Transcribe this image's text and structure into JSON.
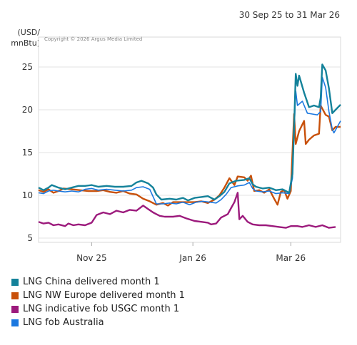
{
  "header": {
    "date_range": "30 Sep 25 to 31 Mar 26"
  },
  "chart_data": {
    "type": "line",
    "unit_line1": "(USD/",
    "unit_line2": "mnBtu)",
    "copyright": "Copyright © 2026 Argus Media Limited",
    "ylim": [
      4.5,
      28.5
    ],
    "yticks": [
      5,
      10,
      15,
      20,
      25
    ],
    "xlim": [
      "2025-09-30",
      "2026-03-31"
    ],
    "xticks": [
      {
        "label": "Nov 25",
        "date": "2025-11-01"
      },
      {
        "label": "Jan 26",
        "date": "2026-01-01"
      },
      {
        "label": "Mar 26",
        "date": "2026-03-01"
      }
    ],
    "grid": true,
    "legend_position": "bottom",
    "series": [
      {
        "name": "LNG China delivered month 1",
        "color": "#14829a",
        "points": [
          [
            "2025-09-30",
            10.9
          ],
          [
            "2025-10-03",
            10.6
          ],
          [
            "2025-10-06",
            10.9
          ],
          [
            "2025-10-08",
            11.2
          ],
          [
            "2025-10-12",
            10.9
          ],
          [
            "2025-10-16",
            10.7
          ],
          [
            "2025-10-20",
            10.9
          ],
          [
            "2025-10-24",
            11.1
          ],
          [
            "2025-10-28",
            11.1
          ],
          [
            "2025-11-01",
            11.2
          ],
          [
            "2025-11-05",
            11.0
          ],
          [
            "2025-11-10",
            11.1
          ],
          [
            "2025-11-15",
            11.0
          ],
          [
            "2025-11-20",
            11.0
          ],
          [
            "2025-11-25",
            11.1
          ],
          [
            "2025-11-28",
            11.5
          ],
          [
            "2025-12-01",
            11.7
          ],
          [
            "2025-12-05",
            11.4
          ],
          [
            "2025-12-08",
            10.9
          ],
          [
            "2025-12-10",
            10.1
          ],
          [
            "2025-12-13",
            9.5
          ],
          [
            "2025-12-18",
            9.6
          ],
          [
            "2025-12-22",
            9.5
          ],
          [
            "2025-12-26",
            9.7
          ],
          [
            "2025-12-29",
            9.4
          ],
          [
            "2026-01-02",
            9.7
          ],
          [
            "2026-01-06",
            9.8
          ],
          [
            "2026-01-10",
            9.9
          ],
          [
            "2026-01-14",
            9.5
          ],
          [
            "2026-01-17",
            9.9
          ],
          [
            "2026-01-20",
            10.4
          ],
          [
            "2026-01-23",
            11.4
          ],
          [
            "2026-01-27",
            11.7
          ],
          [
            "2026-02-01",
            11.8
          ],
          [
            "2026-02-04",
            12.0
          ],
          [
            "2026-02-06",
            11.3
          ],
          [
            "2026-02-08",
            11.0
          ],
          [
            "2026-02-12",
            10.8
          ],
          [
            "2026-02-16",
            10.9
          ],
          [
            "2026-02-20",
            10.6
          ],
          [
            "2026-02-24",
            10.7
          ],
          [
            "2026-02-26",
            10.5
          ],
          [
            "2026-02-28",
            10.3
          ],
          [
            "2026-03-02",
            12.5
          ],
          [
            "2026-03-03",
            18.0
          ],
          [
            "2026-03-04",
            24.2
          ],
          [
            "2026-03-05",
            22.8
          ],
          [
            "2026-03-06",
            24.0
          ],
          [
            "2026-03-09",
            22.0
          ],
          [
            "2026-03-12",
            20.3
          ],
          [
            "2026-03-15",
            20.5
          ],
          [
            "2026-03-18",
            20.3
          ],
          [
            "2026-03-19",
            21.4
          ],
          [
            "2026-03-20",
            25.3
          ],
          [
            "2026-03-22",
            24.6
          ],
          [
            "2026-03-24",
            22.5
          ],
          [
            "2026-03-26",
            19.6
          ],
          [
            "2026-03-28",
            20.0
          ],
          [
            "2026-03-31",
            20.6
          ]
        ]
      },
      {
        "name": "LNG NW Europe delivered month 1",
        "color": "#c8500a",
        "points": [
          [
            "2025-09-30",
            10.6
          ],
          [
            "2025-10-03",
            10.4
          ],
          [
            "2025-10-06",
            10.7
          ],
          [
            "2025-10-09",
            10.3
          ],
          [
            "2025-10-12",
            10.5
          ],
          [
            "2025-10-15",
            10.8
          ],
          [
            "2025-10-20",
            10.7
          ],
          [
            "2025-10-25",
            10.6
          ],
          [
            "2025-10-30",
            10.5
          ],
          [
            "2025-11-04",
            10.5
          ],
          [
            "2025-11-08",
            10.6
          ],
          [
            "2025-11-12",
            10.4
          ],
          [
            "2025-11-16",
            10.3
          ],
          [
            "2025-11-20",
            10.5
          ],
          [
            "2025-11-24",
            10.2
          ],
          [
            "2025-11-28",
            10.1
          ],
          [
            "2025-12-02",
            9.6
          ],
          [
            "2025-12-06",
            9.3
          ],
          [
            "2025-12-10",
            8.9
          ],
          [
            "2025-12-14",
            9.1
          ],
          [
            "2025-12-17",
            8.8
          ],
          [
            "2025-12-20",
            9.2
          ],
          [
            "2025-12-24",
            9.2
          ],
          [
            "2025-12-28",
            9.2
          ],
          [
            "2026-01-02",
            9.2
          ],
          [
            "2026-01-06",
            9.3
          ],
          [
            "2026-01-10",
            9.1
          ],
          [
            "2026-01-14",
            9.5
          ],
          [
            "2026-01-17",
            10.0
          ],
          [
            "2026-01-20",
            10.9
          ],
          [
            "2026-01-23",
            12.0
          ],
          [
            "2026-01-26",
            11.2
          ],
          [
            "2026-01-28",
            12.2
          ],
          [
            "2026-02-01",
            12.1
          ],
          [
            "2026-02-03",
            11.7
          ],
          [
            "2026-02-05",
            12.3
          ],
          [
            "2026-02-07",
            10.5
          ],
          [
            "2026-02-10",
            10.6
          ],
          [
            "2026-02-13",
            10.3
          ],
          [
            "2026-02-16",
            10.7
          ],
          [
            "2026-02-19",
            9.6
          ],
          [
            "2026-02-21",
            8.9
          ],
          [
            "2026-02-23",
            10.4
          ],
          [
            "2026-02-25",
            10.6
          ],
          [
            "2026-02-27",
            9.6
          ],
          [
            "2026-03-01",
            10.5
          ],
          [
            "2026-03-03",
            19.5
          ],
          [
            "2026-03-04",
            16.0
          ],
          [
            "2026-03-06",
            17.5
          ],
          [
            "2026-03-09",
            18.7
          ],
          [
            "2026-03-10",
            16.0
          ],
          [
            "2026-03-12",
            16.5
          ],
          [
            "2026-03-15",
            17.0
          ],
          [
            "2026-03-18",
            17.2
          ],
          [
            "2026-03-19",
            20.5
          ],
          [
            "2026-03-22",
            19.4
          ],
          [
            "2026-03-24",
            19.2
          ],
          [
            "2026-03-26",
            17.6
          ],
          [
            "2026-03-28",
            18.0
          ],
          [
            "2026-03-31",
            18.0
          ]
        ]
      },
      {
        "name": "LNG indicative fob USGC month 1",
        "color": "#9c1a7c",
        "points": [
          [
            "2025-09-30",
            6.9
          ],
          [
            "2025-10-03",
            6.7
          ],
          [
            "2025-10-06",
            6.8
          ],
          [
            "2025-10-09",
            6.5
          ],
          [
            "2025-10-12",
            6.6
          ],
          [
            "2025-10-16",
            6.4
          ],
          [
            "2025-10-18",
            6.7
          ],
          [
            "2025-10-21",
            6.5
          ],
          [
            "2025-10-24",
            6.6
          ],
          [
            "2025-10-28",
            6.5
          ],
          [
            "2025-11-01",
            6.8
          ],
          [
            "2025-11-04",
            7.7
          ],
          [
            "2025-11-08",
            8.0
          ],
          [
            "2025-11-12",
            7.8
          ],
          [
            "2025-11-16",
            8.2
          ],
          [
            "2025-11-20",
            8.0
          ],
          [
            "2025-11-24",
            8.3
          ],
          [
            "2025-11-28",
            8.2
          ],
          [
            "2025-12-02",
            8.8
          ],
          [
            "2025-12-05",
            8.4
          ],
          [
            "2025-12-08",
            8.0
          ],
          [
            "2025-12-10",
            7.8
          ],
          [
            "2025-12-12",
            7.6
          ],
          [
            "2025-12-15",
            7.5
          ],
          [
            "2025-12-20",
            7.5
          ],
          [
            "2025-12-24",
            7.6
          ],
          [
            "2025-12-28",
            7.3
          ],
          [
            "2026-01-02",
            7.0
          ],
          [
            "2026-01-06",
            6.9
          ],
          [
            "2026-01-10",
            6.8
          ],
          [
            "2026-01-12",
            6.6
          ],
          [
            "2026-01-15",
            6.7
          ],
          [
            "2026-01-18",
            7.4
          ],
          [
            "2026-01-22",
            7.8
          ],
          [
            "2026-01-24",
            8.5
          ],
          [
            "2026-01-26",
            9.2
          ],
          [
            "2026-01-28",
            10.3
          ],
          [
            "2026-01-29",
            7.2
          ],
          [
            "2026-01-31",
            7.6
          ],
          [
            "2026-02-03",
            6.9
          ],
          [
            "2026-02-06",
            6.6
          ],
          [
            "2026-02-10",
            6.5
          ],
          [
            "2026-02-14",
            6.5
          ],
          [
            "2026-02-18",
            6.4
          ],
          [
            "2026-02-22",
            6.3
          ],
          [
            "2026-02-26",
            6.2
          ],
          [
            "2026-03-01",
            6.4
          ],
          [
            "2026-03-05",
            6.4
          ],
          [
            "2026-03-08",
            6.3
          ],
          [
            "2026-03-12",
            6.5
          ],
          [
            "2026-03-16",
            6.3
          ],
          [
            "2026-03-20",
            6.5
          ],
          [
            "2026-03-24",
            6.2
          ],
          [
            "2026-03-28",
            6.3
          ]
        ]
      },
      {
        "name": "LNG fob Australia",
        "color": "#1b78e0",
        "points": [
          [
            "2025-09-30",
            10.3
          ],
          [
            "2025-10-03",
            10.2
          ],
          [
            "2025-10-06",
            10.5
          ],
          [
            "2025-10-09",
            10.6
          ],
          [
            "2025-10-12",
            10.5
          ],
          [
            "2025-10-16",
            10.4
          ],
          [
            "2025-10-20",
            10.5
          ],
          [
            "2025-10-24",
            10.4
          ],
          [
            "2025-10-28",
            10.7
          ],
          [
            "2025-11-01",
            10.8
          ],
          [
            "2025-11-05",
            10.6
          ],
          [
            "2025-11-10",
            10.7
          ],
          [
            "2025-11-15",
            10.6
          ],
          [
            "2025-11-20",
            10.5
          ],
          [
            "2025-11-25",
            10.6
          ],
          [
            "2025-11-28",
            10.9
          ],
          [
            "2025-12-02",
            11.0
          ],
          [
            "2025-12-06",
            10.7
          ],
          [
            "2025-12-10",
            9.0
          ],
          [
            "2025-12-14",
            9.0
          ],
          [
            "2025-12-18",
            9.1
          ],
          [
            "2025-12-22",
            9.0
          ],
          [
            "2025-12-26",
            9.2
          ],
          [
            "2025-12-30",
            8.9
          ],
          [
            "2026-01-03",
            9.2
          ],
          [
            "2026-01-07",
            9.3
          ],
          [
            "2026-01-11",
            9.2
          ],
          [
            "2026-01-15",
            9.1
          ],
          [
            "2026-01-18",
            9.5
          ],
          [
            "2026-01-21",
            10.1
          ],
          [
            "2026-01-24",
            10.9
          ],
          [
            "2026-01-28",
            11.1
          ],
          [
            "2026-02-01",
            11.2
          ],
          [
            "2026-02-04",
            11.5
          ],
          [
            "2026-02-06",
            10.8
          ],
          [
            "2026-02-08",
            10.5
          ],
          [
            "2026-02-12",
            10.4
          ],
          [
            "2026-02-16",
            10.5
          ],
          [
            "2026-02-20",
            10.2
          ],
          [
            "2026-02-24",
            10.3
          ],
          [
            "2026-02-28",
            10.2
          ],
          [
            "2026-03-02",
            12.0
          ],
          [
            "2026-03-03",
            17.5
          ],
          [
            "2026-03-04",
            22.2
          ],
          [
            "2026-03-05",
            20.5
          ],
          [
            "2026-03-08",
            21.0
          ],
          [
            "2026-03-11",
            19.6
          ],
          [
            "2026-03-14",
            19.5
          ],
          [
            "2026-03-17",
            19.4
          ],
          [
            "2026-03-19",
            19.8
          ],
          [
            "2026-03-20",
            23.8
          ],
          [
            "2026-03-22",
            22.6
          ],
          [
            "2026-03-24",
            19.8
          ],
          [
            "2026-03-26",
            17.7
          ],
          [
            "2026-03-27",
            17.3
          ],
          [
            "2026-03-29",
            18.0
          ],
          [
            "2026-03-31",
            18.7
          ]
        ]
      }
    ]
  }
}
